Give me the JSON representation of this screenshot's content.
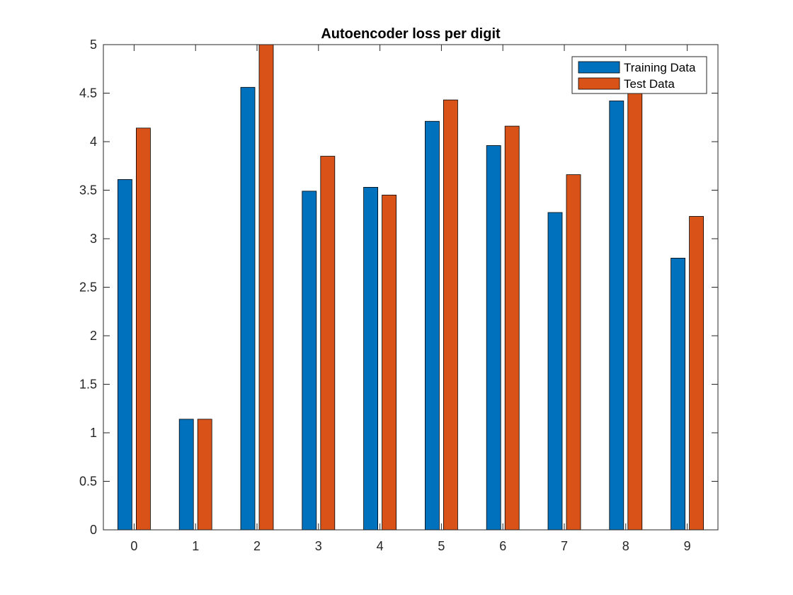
{
  "chart_data": {
    "type": "bar",
    "title": "Autoencoder loss per digit",
    "xlabel": "",
    "ylabel": "",
    "categories": [
      "0",
      "1",
      "2",
      "3",
      "4",
      "5",
      "6",
      "7",
      "8",
      "9"
    ],
    "series": [
      {
        "name": "Training Data",
        "color": "#0072BD",
        "values": [
          3.61,
          1.14,
          4.56,
          3.49,
          3.53,
          4.21,
          3.96,
          3.27,
          4.42,
          2.8
        ]
      },
      {
        "name": "Test Data",
        "color": "#D95319",
        "values": [
          4.14,
          1.14,
          5.0,
          3.85,
          3.45,
          4.43,
          4.16,
          3.66,
          4.55,
          3.23
        ]
      }
    ],
    "ylim": [
      0,
      5
    ],
    "yticks": [
      "0",
      "0.5",
      "1",
      "1.5",
      "2",
      "2.5",
      "3",
      "3.5",
      "4",
      "4.5",
      "5"
    ],
    "grid": false,
    "legend_position": "top-right"
  }
}
